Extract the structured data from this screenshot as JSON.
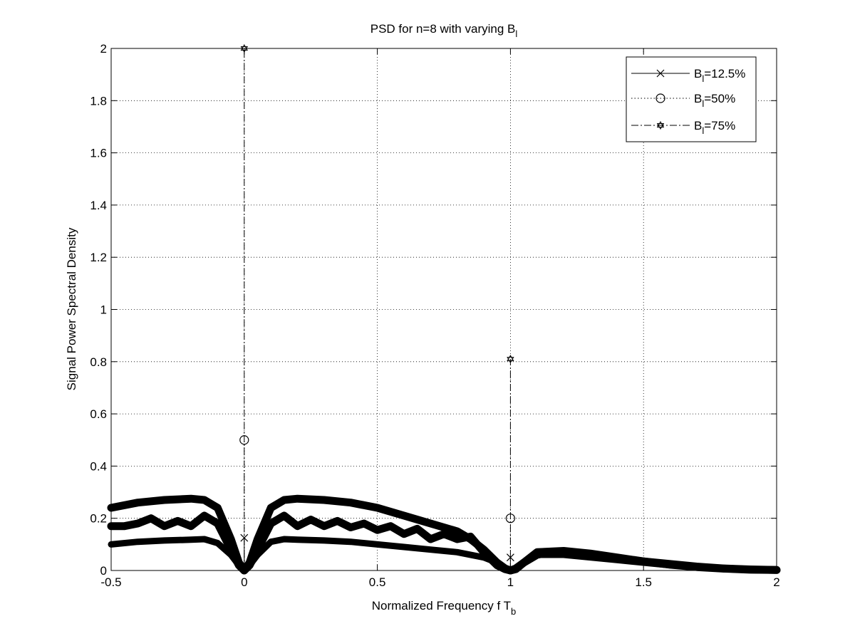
{
  "chart_data": {
    "type": "line",
    "title": "PSD for n=8 with varying B",
    "title_sub": "l",
    "xlabel": "Normalized Frequency f T",
    "xlabel_sub": "b",
    "ylabel": "Signal Power Spectral Density",
    "xlim": [
      -0.5,
      2
    ],
    "ylim": [
      0,
      2
    ],
    "xticks": [
      -0.5,
      0,
      0.5,
      1,
      1.5,
      2
    ],
    "xtick_labels": [
      "-0.5",
      "0",
      "0.5",
      "1",
      "1.5",
      "2"
    ],
    "yticks": [
      0,
      0.2,
      0.4,
      0.6,
      0.8,
      1,
      1.2,
      1.4,
      1.6,
      1.8,
      2
    ],
    "ytick_labels": [
      "0",
      "0.2",
      "0.4",
      "0.6",
      "0.8",
      "1",
      "1.2",
      "1.4",
      "1.6",
      "1.8",
      "2"
    ],
    "grid": "dotted",
    "legend_position": "top-right",
    "series": [
      {
        "name": "=12.5%",
        "name_prefix": "B",
        "name_sub": "l",
        "marker": "x",
        "line": "solid",
        "x": [
          -0.5,
          -0.4,
          -0.3,
          -0.2,
          -0.15,
          -0.1,
          -0.05,
          -0.02,
          0,
          0.02,
          0.05,
          0.1,
          0.15,
          0.2,
          0.3,
          0.4,
          0.5,
          0.6,
          0.7,
          0.8,
          0.9,
          0.95,
          0.98,
          1,
          1.02,
          1.05,
          1.1,
          1.2,
          1.3,
          1.4,
          1.5,
          1.6,
          1.7,
          1.8,
          1.9,
          2
        ],
        "y": [
          0.1,
          0.11,
          0.115,
          0.118,
          0.12,
          0.105,
          0.06,
          0.02,
          0,
          0.02,
          0.06,
          0.11,
          0.12,
          0.118,
          0.115,
          0.11,
          0.1,
          0.09,
          0.08,
          0.07,
          0.05,
          0.03,
          0.01,
          0,
          0.01,
          0.03,
          0.06,
          0.06,
          0.05,
          0.04,
          0.03,
          0.02,
          0.012,
          0.006,
          0.003,
          0.002
        ],
        "impulses": [
          {
            "x": 0,
            "y": 0.125
          },
          {
            "x": 1,
            "y": 0.05
          }
        ]
      },
      {
        "name": "=50%",
        "name_prefix": "B",
        "name_sub": "l",
        "marker": "circle",
        "line": "dotted",
        "x": [
          -0.5,
          -0.45,
          -0.4,
          -0.35,
          -0.3,
          -0.25,
          -0.2,
          -0.15,
          -0.1,
          -0.05,
          -0.02,
          0,
          0.02,
          0.05,
          0.1,
          0.15,
          0.2,
          0.25,
          0.3,
          0.35,
          0.4,
          0.45,
          0.5,
          0.55,
          0.6,
          0.65,
          0.7,
          0.75,
          0.8,
          0.85,
          0.9,
          0.95,
          0.98,
          1,
          1.02,
          1.05,
          1.1,
          1.15,
          1.2,
          1.3,
          1.4,
          1.5,
          1.6,
          1.7,
          1.8,
          1.9,
          2
        ],
        "y": [
          0.17,
          0.17,
          0.18,
          0.2,
          0.17,
          0.19,
          0.17,
          0.21,
          0.18,
          0.08,
          0.02,
          0,
          0.02,
          0.08,
          0.18,
          0.21,
          0.17,
          0.195,
          0.17,
          0.19,
          0.165,
          0.18,
          0.155,
          0.17,
          0.14,
          0.16,
          0.12,
          0.14,
          0.12,
          0.13,
          0.07,
          0.02,
          0.005,
          0,
          0.005,
          0.03,
          0.06,
          0.07,
          0.065,
          0.055,
          0.045,
          0.035,
          0.025,
          0.015,
          0.008,
          0.004,
          0.002
        ],
        "impulses": [
          {
            "x": 0,
            "y": 0.5
          },
          {
            "x": 1,
            "y": 0.2
          }
        ]
      },
      {
        "name": "=75%",
        "name_prefix": "B",
        "name_sub": "l",
        "marker": "hexagram",
        "line": "dashdot",
        "x": [
          -0.5,
          -0.4,
          -0.3,
          -0.2,
          -0.15,
          -0.1,
          -0.05,
          -0.02,
          0,
          0.02,
          0.05,
          0.1,
          0.15,
          0.2,
          0.3,
          0.4,
          0.5,
          0.6,
          0.7,
          0.8,
          0.85,
          0.9,
          0.95,
          0.98,
          1,
          1.02,
          1.05,
          1.1,
          1.2,
          1.3,
          1.4,
          1.5,
          1.6,
          1.7,
          1.8,
          1.9,
          2
        ],
        "y": [
          0.24,
          0.26,
          0.27,
          0.275,
          0.27,
          0.24,
          0.12,
          0.03,
          0,
          0.03,
          0.12,
          0.24,
          0.27,
          0.275,
          0.27,
          0.26,
          0.24,
          0.21,
          0.18,
          0.15,
          0.12,
          0.08,
          0.03,
          0.008,
          0,
          0.008,
          0.03,
          0.07,
          0.075,
          0.065,
          0.05,
          0.035,
          0.022,
          0.013,
          0.007,
          0.003,
          0.002
        ],
        "impulses": [
          {
            "x": 0,
            "y": 2
          },
          {
            "x": 1,
            "y": 0.81
          }
        ]
      }
    ]
  }
}
